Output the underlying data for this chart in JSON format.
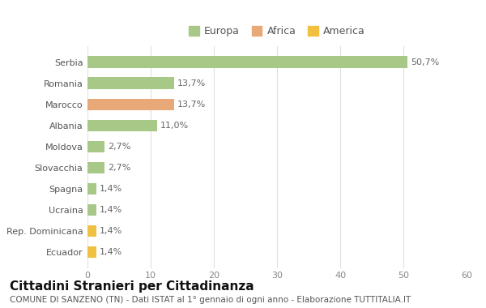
{
  "categories": [
    "Ecuador",
    "Rep. Dominicana",
    "Ucraina",
    "Spagna",
    "Slovacchia",
    "Moldova",
    "Albania",
    "Marocco",
    "Romania",
    "Serbia"
  ],
  "values": [
    1.4,
    1.4,
    1.4,
    1.4,
    2.7,
    2.7,
    11.0,
    13.7,
    13.7,
    50.7
  ],
  "labels": [
    "1,4%",
    "1,4%",
    "1,4%",
    "1,4%",
    "2,7%",
    "2,7%",
    "11,0%",
    "13,7%",
    "13,7%",
    "50,7%"
  ],
  "colors": [
    "#f0c040",
    "#f0c040",
    "#a8c888",
    "#a8c888",
    "#a8c888",
    "#a8c888",
    "#a8c888",
    "#e8a878",
    "#a8c888",
    "#a8c888"
  ],
  "legend": [
    {
      "label": "Europa",
      "color": "#a8c888"
    },
    {
      "label": "Africa",
      "color": "#e8a878"
    },
    {
      "label": "America",
      "color": "#f0c040"
    }
  ],
  "title": "Cittadini Stranieri per Cittadinanza",
  "subtitle": "COMUNE DI SANZENO (TN) - Dati ISTAT al 1° gennaio di ogni anno - Elaborazione TUTTITALIA.IT",
  "xlim": [
    0,
    60
  ],
  "xticks": [
    0,
    10,
    20,
    30,
    40,
    50,
    60
  ],
  "background_color": "#ffffff",
  "grid_color": "#e0e0e0",
  "bar_height": 0.55,
  "title_fontsize": 11,
  "subtitle_fontsize": 7.5,
  "label_fontsize": 8,
  "tick_fontsize": 8,
  "legend_fontsize": 9
}
